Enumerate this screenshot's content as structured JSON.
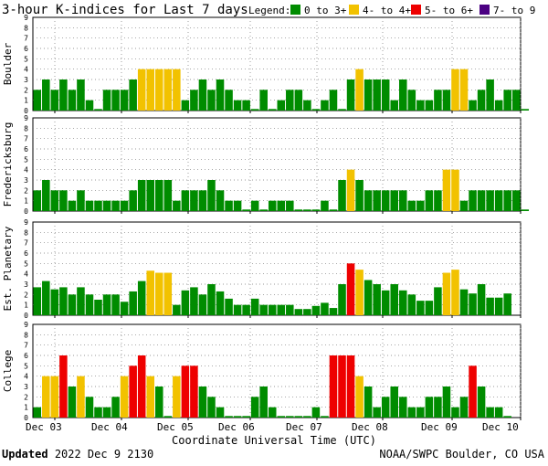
{
  "header": {
    "title": "3-hour K-indices for Last 7 days",
    "legend_label": "Legend:",
    "legend": [
      {
        "name": "0 to 3+",
        "color": "#008c00"
      },
      {
        "name": "4- to 4+",
        "color": "#f2c200"
      },
      {
        "name": "5- to 6+",
        "color": "#ee0000"
      },
      {
        "name": "7- to 9",
        "color": "#4b0082"
      }
    ]
  },
  "chart_data": [
    {
      "type": "bar",
      "panel": "Boulder",
      "ylabel": "Boulder",
      "ylim": [
        0,
        9
      ],
      "values": [
        2,
        3,
        2,
        3,
        2,
        3,
        1,
        0.15,
        2,
        2,
        2,
        3,
        4,
        4,
        4,
        4,
        4,
        1,
        2,
        3,
        2,
        3,
        2,
        1,
        1,
        0.15,
        2,
        0.15,
        1,
        2,
        2,
        1,
        0.15,
        1,
        2,
        0.15,
        3,
        4,
        3,
        3,
        3,
        1,
        3,
        2,
        1,
        1,
        2,
        2,
        4,
        4,
        1,
        2,
        3,
        1,
        2,
        2,
        0.15
      ]
    },
    {
      "type": "bar",
      "panel": "Fredericksburg",
      "ylabel": "Fredericksburg",
      "ylim": [
        0,
        9
      ],
      "values": [
        2,
        3,
        2,
        2,
        1,
        2,
        1,
        1,
        1,
        1,
        1,
        2,
        3,
        3,
        3,
        3,
        1,
        2,
        2,
        2,
        3,
        2,
        1,
        1,
        0.15,
        1,
        0.15,
        1,
        1,
        1,
        0.15,
        0.15,
        0.15,
        1,
        0.15,
        3,
        4,
        3,
        2,
        2,
        2,
        2,
        2,
        1,
        1,
        2,
        2,
        4,
        4,
        1,
        2,
        2,
        2,
        2,
        2,
        2,
        0.15
      ]
    },
    {
      "type": "bar",
      "panel": "Est. Planetary",
      "ylabel": "Est. Planetary",
      "ylim": [
        0,
        9
      ],
      "values": [
        2.7,
        3.3,
        2.5,
        2.7,
        2,
        2.7,
        2,
        1.5,
        2,
        2,
        1.3,
        2.3,
        3.3,
        4.3,
        4.1,
        4.1,
        1,
        2.4,
        2.7,
        2,
        3,
        2.3,
        1.6,
        1,
        1,
        1.6,
        1,
        1,
        1,
        1,
        0.6,
        0.6,
        0.9,
        1.2,
        0.7,
        3,
        5,
        4.4,
        3.4,
        3,
        2.4,
        3,
        2.4,
        2,
        1.4,
        1.4,
        2.7,
        4.1,
        4.4,
        2.5,
        2.1,
        3,
        1.7,
        1.7,
        2.1
      ]
    },
    {
      "type": "bar",
      "panel": "College",
      "ylabel": "College",
      "ylim": [
        0,
        9
      ],
      "values": [
        1,
        4,
        4,
        6,
        3,
        4,
        2,
        1,
        1,
        2,
        4,
        5,
        6,
        4,
        3,
        0.15,
        4,
        5,
        5,
        3,
        2,
        1,
        0.15,
        0.15,
        0.15,
        2,
        3,
        1,
        0.15,
        0.15,
        0.15,
        0.15,
        1,
        0.15,
        6,
        6,
        6,
        4,
        3,
        1,
        2,
        3,
        2,
        1,
        1,
        2,
        2,
        3,
        1,
        2,
        5,
        3,
        1,
        1,
        0.15
      ]
    }
  ],
  "x_axis": {
    "tick_labels": [
      "Dec 03",
      "Dec 04",
      "Dec 05",
      "Dec 06",
      "Dec 07",
      "Dec 08",
      "Dec 09",
      "Dec 10"
    ],
    "xlabel": "Coordinate Universal Time (UTC)"
  },
  "y_ticks": [
    "0",
    "1",
    "2",
    "3",
    "4",
    "5",
    "6",
    "7",
    "8",
    "9"
  ],
  "footer": {
    "updated_label": "Updated",
    "updated_value": "2022 Dec  9 2130",
    "credit": "NOAA/SWPC Boulder, CO USA"
  }
}
